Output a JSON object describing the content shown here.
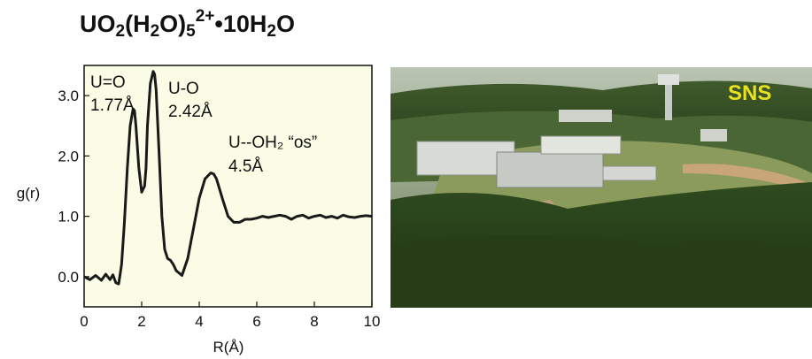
{
  "title": {
    "main": "UO",
    "sub1": "2",
    "mid": "(H",
    "sub2": "2",
    "mid2": "O)",
    "sub3": "5",
    "sup": "2+",
    "tail": "•10H",
    "sub4": "2",
    "end": "O"
  },
  "chart_data": {
    "type": "line",
    "title": "UO2(H2O)5 2+•10H2O",
    "xlabel": "R(Å)",
    "ylabel": "g(r)",
    "xlim": [
      0,
      10
    ],
    "ylim": [
      -0.5,
      3.5
    ],
    "x_ticks": [
      "0",
      "2",
      "4",
      "6",
      "8",
      "10"
    ],
    "y_ticks": [
      "0.0",
      "1.0",
      "2.0",
      "3.0"
    ],
    "x_tick_values": [
      0,
      2,
      4,
      6,
      8,
      10
    ],
    "y_tick_values": [
      0,
      1,
      2,
      3
    ],
    "background": "#fbfce6",
    "line_color": "#1a1a1a",
    "series": [
      {
        "x": [
          0.0,
          0.2,
          0.4,
          0.6,
          0.75,
          0.9,
          1.0,
          1.1,
          1.2,
          1.3,
          1.4,
          1.5,
          1.6,
          1.7,
          1.75,
          1.8,
          1.9,
          2.0,
          2.1,
          2.15,
          2.2,
          2.3,
          2.4,
          2.45,
          2.5,
          2.6,
          2.7,
          2.8,
          2.9,
          3.0,
          3.1,
          3.2,
          3.4,
          3.6,
          3.8,
          4.0,
          4.2,
          4.4,
          4.5,
          4.6,
          4.8,
          5.0,
          5.2,
          5.4,
          5.6,
          5.8,
          6.0,
          6.2,
          6.4,
          6.6,
          6.8,
          7.0,
          7.2,
          7.4,
          7.6,
          7.8,
          8.0,
          8.2,
          8.4,
          8.6,
          8.8,
          9.0,
          9.2,
          9.4,
          9.6,
          9.8,
          10.0
        ],
        "y": [
          0.0,
          -0.05,
          0.02,
          -0.06,
          0.04,
          -0.05,
          0.03,
          -0.1,
          -0.12,
          0.2,
          0.9,
          1.8,
          2.5,
          2.78,
          2.75,
          2.5,
          1.8,
          1.4,
          1.5,
          1.8,
          2.5,
          3.2,
          3.4,
          3.35,
          3.1,
          2.1,
          1.0,
          0.45,
          0.3,
          0.27,
          0.2,
          0.1,
          0.02,
          0.3,
          0.8,
          1.3,
          1.62,
          1.72,
          1.7,
          1.62,
          1.3,
          1.0,
          0.9,
          0.9,
          0.95,
          0.95,
          0.97,
          1.0,
          0.98,
          1.0,
          1.02,
          1.0,
          0.95,
          1.0,
          1.02,
          0.97,
          1.0,
          1.02,
          0.98,
          1.0,
          0.97,
          1.02,
          0.99,
          0.98,
          1.0,
          1.01,
          1.0
        ]
      }
    ],
    "annotations": [
      {
        "line1": "U=O",
        "line2": "1.77Å"
      },
      {
        "line1": "U-O",
        "line2": "2.42Å"
      },
      {
        "line1": "U--OH₂ “os”",
        "line2": "4.5Å"
      }
    ]
  },
  "photo": {
    "label": "SNS",
    "label_color": "#e8e21e"
  }
}
